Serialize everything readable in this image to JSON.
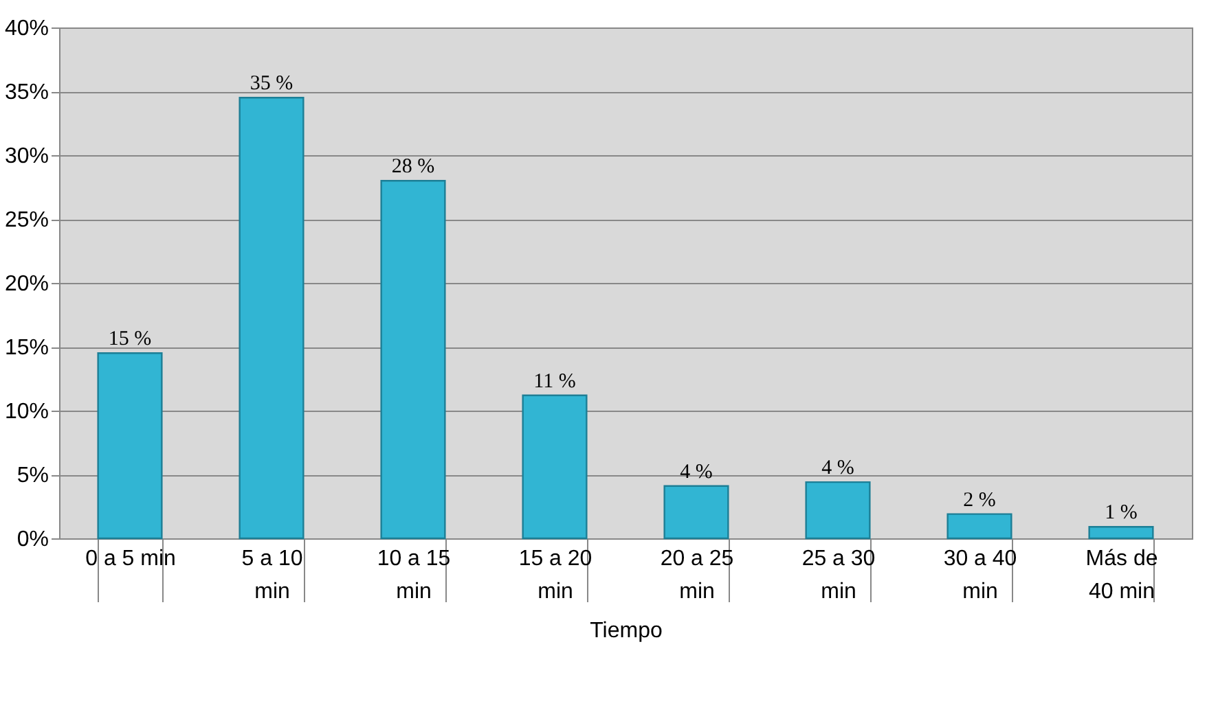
{
  "chart_data": {
    "type": "bar",
    "xlabel": "Tiempo",
    "categories": [
      "0 a 5 min",
      "5 a 10 min",
      "10 a 15 min",
      "15 a 20 min",
      "20 a 25 min",
      "25 a 30 min",
      "30 a 40 min",
      "Más de 40 min"
    ],
    "values": [
      14.5,
      34.5,
      28,
      11.2,
      4.1,
      4.4,
      1.9,
      0.9
    ],
    "value_labels": [
      "15 %",
      "35 %",
      "28 %",
      "11 %",
      "4 %",
      "4 %",
      "2 %",
      "1 %"
    ],
    "color": "#31b5d3",
    "ylim": [
      0,
      40
    ],
    "yticks": [
      {
        "value": 0,
        "label": "0%"
      },
      {
        "value": 5,
        "label": "5%"
      },
      {
        "value": 10,
        "label": "10%"
      },
      {
        "value": 15,
        "label": "15%"
      },
      {
        "value": 20,
        "label": "20%"
      },
      {
        "value": 25,
        "label": "25%"
      },
      {
        "value": 30,
        "label": "30%"
      },
      {
        "value": 35,
        "label": "35%"
      },
      {
        "value": 40,
        "label": "40%"
      }
    ],
    "grid": "y",
    "legend": false
  }
}
